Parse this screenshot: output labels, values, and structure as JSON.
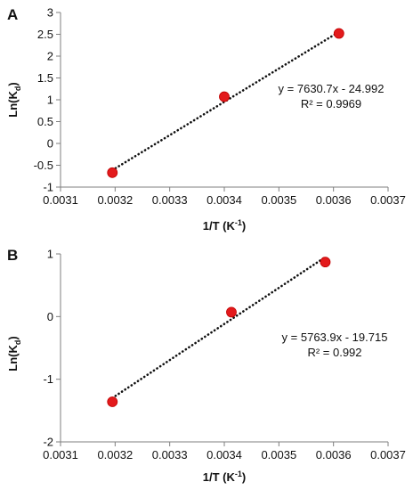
{
  "chart_data": [
    {
      "type": "scatter",
      "panel_label": "A",
      "xlabel": "1/T (K⁻¹)",
      "xlabel_main": "1/T (K",
      "xlabel_sup": "-1",
      "xlabel_close": ")",
      "ylabel": "Ln(K_d)",
      "ylabel_main": "Ln(K",
      "ylabel_sub": "d",
      "ylabel_close": ")",
      "xlim": [
        0.0031,
        0.0037
      ],
      "ylim": [
        -1,
        3
      ],
      "x_ticks": [
        0.0031,
        0.0032,
        0.0033,
        0.0034,
        0.0035,
        0.0036,
        0.0037
      ],
      "x_tick_labels": [
        "0.0031",
        "0.0032",
        "0.0033",
        "0.0034",
        "0.0035",
        "0.0036",
        "0.0037"
      ],
      "y_ticks": [
        -1,
        -0.5,
        0,
        0.5,
        1,
        1.5,
        2,
        2.5,
        3
      ],
      "y_tick_labels": [
        "-1",
        "-0.5",
        "0",
        "0.5",
        "1",
        "1.5",
        "2",
        "2.5",
        "3"
      ],
      "grid": false,
      "series": [
        {
          "x": [
            0.003195,
            0.0034,
            0.00361
          ],
          "y": [
            -0.67,
            1.07,
            2.52
          ],
          "marker_color": "#e31a1c"
        }
      ],
      "trendline": {
        "slope": 7630.7,
        "intercept": -24.992,
        "style": "dotted",
        "color": "#111111"
      },
      "equation": "y = 7630.7x - 24.992",
      "r_squared": "R² = 0.9969"
    },
    {
      "type": "scatter",
      "panel_label": "B",
      "xlabel": "1/T (K⁻¹)",
      "xlabel_main": "1/T (K",
      "xlabel_sup": "-1",
      "xlabel_close": ")",
      "ylabel": "Ln(K_d)",
      "ylabel_main": "Ln(K",
      "ylabel_sub": "d",
      "ylabel_close": ")",
      "xlim": [
        0.0031,
        0.0037
      ],
      "ylim": [
        -2,
        1
      ],
      "x_ticks": [
        0.0031,
        0.0032,
        0.0033,
        0.0034,
        0.0035,
        0.0036,
        0.0037
      ],
      "x_tick_labels": [
        "0.0031",
        "0.0032",
        "0.0033",
        "0.0034",
        "0.0035",
        "0.0036",
        "0.0037"
      ],
      "y_ticks": [
        -2,
        -1,
        0,
        1
      ],
      "y_tick_labels": [
        "-2",
        "-1",
        "0",
        "1"
      ],
      "grid": false,
      "series": [
        {
          "x": [
            0.003195,
            0.003413,
            0.003585
          ],
          "y": [
            -1.36,
            0.07,
            0.87
          ],
          "marker_color": "#e31a1c"
        }
      ],
      "trendline": {
        "slope": 5763.9,
        "intercept": -19.715,
        "style": "dotted",
        "color": "#111111"
      },
      "equation": "y = 5763.9x - 19.715",
      "r_squared": "R² = 0.992"
    }
  ]
}
